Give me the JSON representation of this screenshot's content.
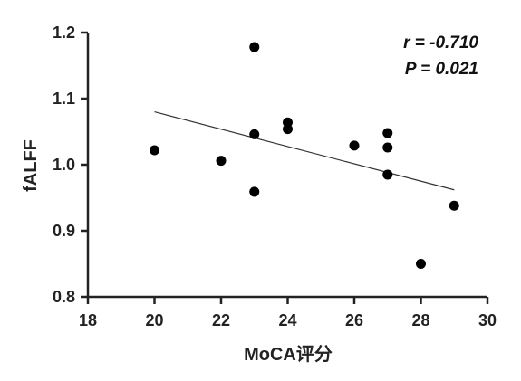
{
  "chart_data": {
    "type": "scatter",
    "xlabel": "MoCA评分",
    "ylabel": "fALFF",
    "xlim": [
      18,
      30
    ],
    "ylim": [
      0.8,
      1.2
    ],
    "x_ticks": [
      "18",
      "20",
      "22",
      "24",
      "26",
      "28",
      "30"
    ],
    "y_ticks": [
      "0.8",
      "0.9",
      "1.0",
      "1.1",
      "1.2"
    ],
    "points": [
      {
        "x": 20,
        "y": 1.022
      },
      {
        "x": 22,
        "y": 1.006
      },
      {
        "x": 23,
        "y": 1.178
      },
      {
        "x": 23,
        "y": 1.046
      },
      {
        "x": 23,
        "y": 0.959
      },
      {
        "x": 24,
        "y": 1.064
      },
      {
        "x": 24,
        "y": 1.054
      },
      {
        "x": 26,
        "y": 1.029
      },
      {
        "x": 27,
        "y": 1.048
      },
      {
        "x": 27,
        "y": 1.026
      },
      {
        "x": 27,
        "y": 0.985
      },
      {
        "x": 28,
        "y": 0.85
      },
      {
        "x": 29,
        "y": 0.938
      }
    ],
    "trendline": {
      "x": [
        20,
        29
      ],
      "y": [
        1.08,
        0.962
      ]
    },
    "annotations": [
      "r = -0.710",
      "P = 0.021"
    ],
    "grid": false
  },
  "colors": {
    "marker": "#000000",
    "axis": "#222222",
    "trendline": "#333333"
  }
}
